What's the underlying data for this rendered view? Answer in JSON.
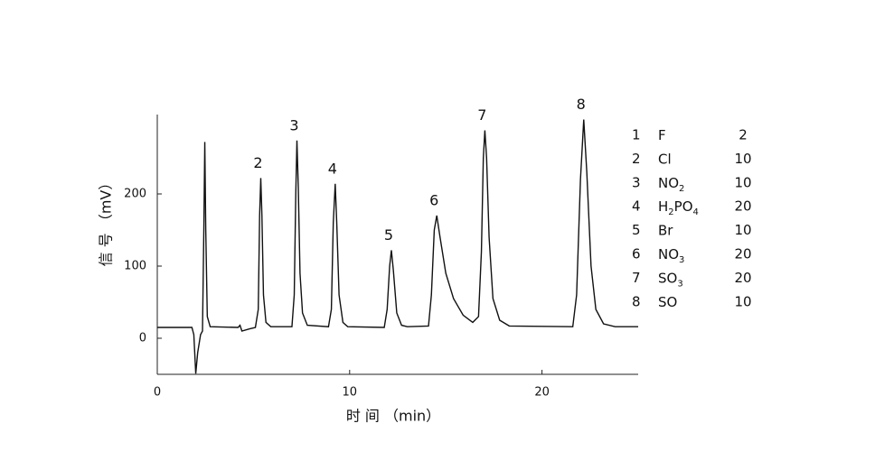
{
  "chart_data": {
    "type": "line",
    "xlabel": "时 间 （min）",
    "ylabel": "信 号 （mV）",
    "xlim": [
      0,
      25
    ],
    "xticks": [
      0,
      10,
      20
    ],
    "ylim": [
      -50,
      310
    ],
    "yticks": [
      0,
      100,
      200
    ],
    "series": [
      {
        "color": "#111111",
        "x": [
          0,
          1.8,
          1.9,
          2.0,
          2.1,
          2.25,
          2.35,
          2.42,
          2.47,
          2.52,
          2.6,
          2.75,
          4.2,
          4.3,
          4.4,
          4.8,
          5.1,
          5.25,
          5.32,
          5.38,
          5.44,
          5.52,
          5.65,
          5.9,
          7.0,
          7.12,
          7.2,
          7.26,
          7.33,
          7.42,
          7.55,
          7.8,
          8.9,
          9.05,
          9.15,
          9.25,
          9.33,
          9.45,
          9.65,
          9.9,
          11.8,
          11.95,
          12.08,
          12.17,
          12.27,
          12.45,
          12.7,
          13,
          14.1,
          14.25,
          14.4,
          14.53,
          14.7,
          15.0,
          15.4,
          15.9,
          16.4,
          16.7,
          16.85,
          16.95,
          17.03,
          17.12,
          17.25,
          17.45,
          17.8,
          18.3,
          21.6,
          21.8,
          22.0,
          22.17,
          22.33,
          22.55,
          22.8,
          23.2,
          23.8,
          25
        ],
        "values": [
          15,
          15,
          5,
          -49,
          -20,
          5,
          10,
          150,
          272,
          150,
          30,
          16,
          15,
          18,
          10,
          13,
          15,
          40,
          170,
          222,
          170,
          60,
          22,
          16,
          16,
          60,
          200,
          274,
          210,
          90,
          35,
          18,
          16,
          40,
          160,
          214,
          160,
          60,
          22,
          16,
          15,
          40,
          100,
          122,
          95,
          35,
          18,
          16,
          17,
          60,
          150,
          170,
          140,
          90,
          55,
          32,
          22,
          30,
          120,
          250,
          288,
          250,
          140,
          55,
          25,
          17,
          16,
          60,
          220,
          303,
          230,
          100,
          40,
          20,
          16,
          16
        ]
      }
    ],
    "annotations": [
      {
        "text": "2",
        "x": 5.38,
        "y": 222
      },
      {
        "text": "3",
        "x": 7.26,
        "y": 274
      },
      {
        "text": "4",
        "x": 9.25,
        "y": 214
      },
      {
        "text": "5",
        "x": 12.17,
        "y": 122
      },
      {
        "text": "6",
        "x": 14.53,
        "y": 170
      },
      {
        "text": "7",
        "x": 17.03,
        "y": 288
      },
      {
        "text": "8",
        "x": 22.17,
        "y": 303
      }
    ],
    "peak_table": [
      {
        "no": "1",
        "ion": [
          "F"
        ],
        "conc": 2
      },
      {
        "no": "2",
        "ion": [
          "Cl"
        ],
        "conc": 10
      },
      {
        "no": "3",
        "ion": [
          "NO",
          "2"
        ],
        "conc": 10
      },
      {
        "no": "4",
        "ion": [
          "H",
          "2",
          "PO",
          "4"
        ],
        "conc": 20
      },
      {
        "no": "5",
        "ion": [
          "Br"
        ],
        "conc": 10
      },
      {
        "no": "6",
        "ion": [
          "NO",
          "3"
        ],
        "conc": 20
      },
      {
        "no": "7",
        "ion": [
          "SO",
          "3"
        ],
        "conc": 20
      },
      {
        "no": "8",
        "ion": [
          "SO"
        ],
        "conc": 10
      }
    ]
  }
}
